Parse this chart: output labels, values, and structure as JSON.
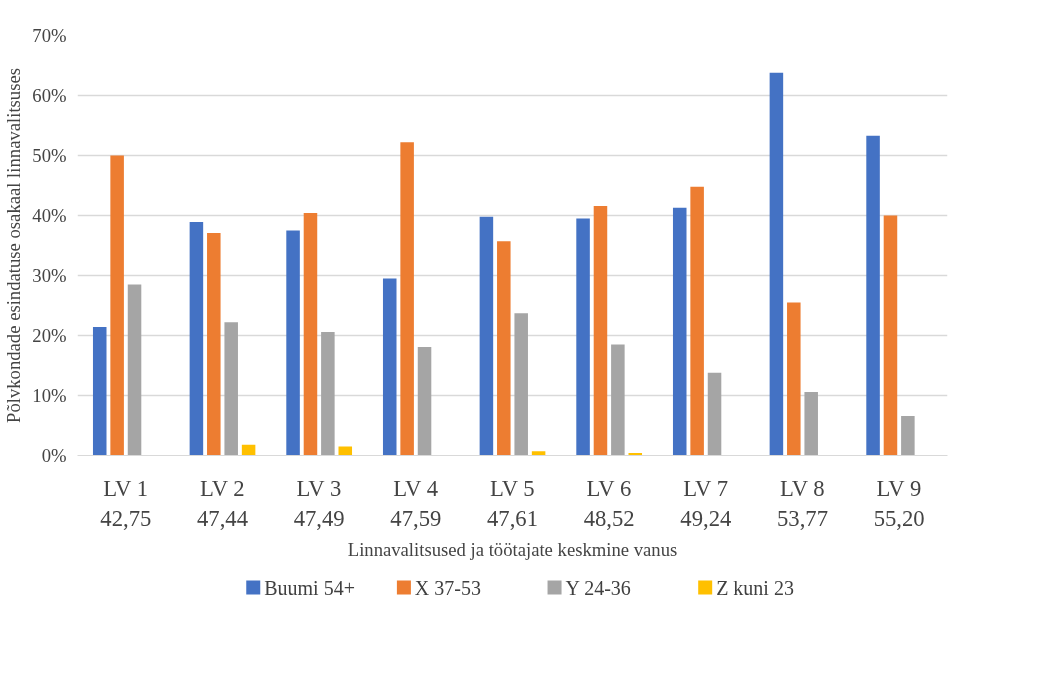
{
  "chart_data": {
    "type": "bar",
    "xlabel": "Linnavalitsused ja töötajate keskmine vanus",
    "ylabel": "Põlvkondade esindatuse osakaal linnavalitsuses",
    "categories": [
      "LV 1\n42,75",
      "LV 2\n47,44",
      "LV 3\n47,49",
      "LV 4\n47,59",
      "LV 5\n47,61",
      "LV 6\n48,52",
      "LV 7\n49,24",
      "LV 8\n53,77",
      "LV 9\n55,20"
    ],
    "series": [
      {
        "name": "Buumi 54+",
        "color": "#4472c4",
        "values": [
          21.4,
          38.9,
          37.5,
          29.5,
          39.8,
          39.5,
          41.3,
          63.8,
          53.3
        ]
      },
      {
        "name": "X 37-53",
        "color": "#ed7d31",
        "values": [
          50.0,
          37.1,
          40.4,
          52.2,
          35.7,
          41.6,
          44.8,
          25.5,
          40.0
        ]
      },
      {
        "name": "Y 24-36",
        "color": "#a5a5a5",
        "values": [
          28.5,
          22.2,
          20.6,
          18.1,
          23.7,
          18.5,
          13.8,
          10.6,
          6.6
        ]
      },
      {
        "name": "Z kuni 23",
        "color": "#ffc000",
        "values": [
          0,
          1.8,
          1.5,
          0,
          0.7,
          0.4,
          0,
          0,
          0
        ]
      }
    ],
    "ylim": [
      0,
      70
    ],
    "yticks": [
      {
        "value": 0,
        "label": "0%"
      },
      {
        "value": 10,
        "label": "10%"
      },
      {
        "value": 20,
        "label": "20%"
      },
      {
        "value": 30,
        "label": "30%"
      },
      {
        "value": 40,
        "label": "40%"
      },
      {
        "value": 50,
        "label": "50%"
      },
      {
        "value": 60,
        "label": "60%"
      },
      {
        "value": 70,
        "label": "70%"
      }
    ],
    "grid": "y",
    "legend": "bottom"
  }
}
